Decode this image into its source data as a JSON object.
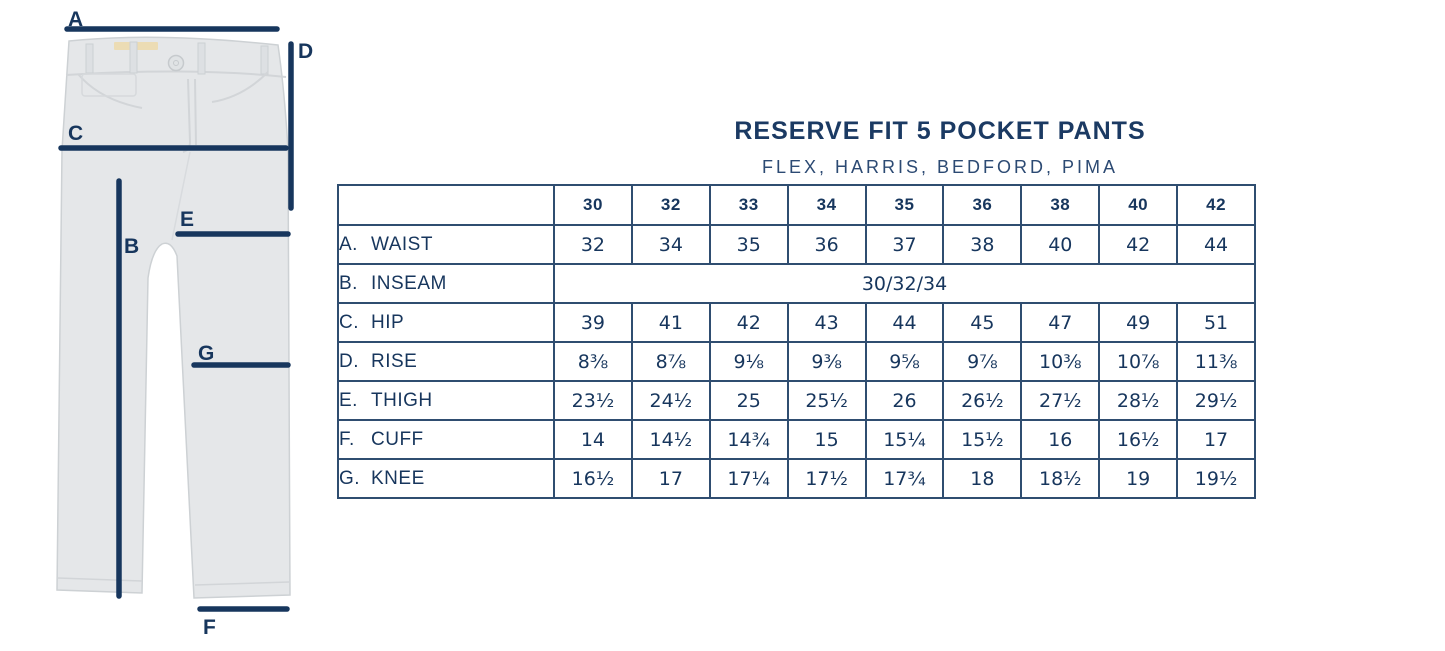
{
  "header": {
    "title": "RESERVE FIT 5 POCKET PANTS",
    "subtitle": "FLEX, HARRIS, BEDFORD, PIMA"
  },
  "diagram": {
    "markers": {
      "a": "A",
      "b": "B",
      "c": "C",
      "d": "D",
      "e": "E",
      "f": "F",
      "g": "G"
    }
  },
  "chart_data": {
    "type": "table",
    "size_columns": [
      "30",
      "32",
      "33",
      "34",
      "35",
      "36",
      "38",
      "40",
      "42"
    ],
    "rows": [
      {
        "key": "A.",
        "label": "WAIST",
        "values": [
          "32",
          "34",
          "35",
          "36",
          "37",
          "38",
          "40",
          "42",
          "44"
        ]
      },
      {
        "key": "B.",
        "label": "INSEAM",
        "merged_value": "30/32/34"
      },
      {
        "key": "C.",
        "label": "HIP",
        "values": [
          "39",
          "41",
          "42",
          "43",
          "44",
          "45",
          "47",
          "49",
          "51"
        ]
      },
      {
        "key": "D.",
        "label": "RISE",
        "values": [
          "8⅜",
          "8⅞",
          "9⅛",
          "9⅜",
          "9⅝",
          "9⅞",
          "10⅜",
          "10⅞",
          "11⅜"
        ]
      },
      {
        "key": "E.",
        "label": "THIGH",
        "values": [
          "23½",
          "24½",
          "25",
          "25½",
          "26",
          "26½",
          "27½",
          "28½",
          "29½"
        ]
      },
      {
        "key": "F.",
        "label": "CUFF",
        "values": [
          "14",
          "14½",
          "14¾",
          "15",
          "15¼",
          "15½",
          "16",
          "16½",
          "17"
        ]
      },
      {
        "key": "G.",
        "label": "KNEE",
        "values": [
          "16½",
          "17",
          "17¼",
          "17½",
          "17¾",
          "18",
          "18½",
          "19",
          "19½"
        ]
      }
    ]
  },
  "colors": {
    "navy_text": "#17365D",
    "table_border": "#2F4D70",
    "measure_line": "#17365D",
    "pants_fill": "#E5E7E9",
    "waistband_tag": "#ECDCB4"
  }
}
